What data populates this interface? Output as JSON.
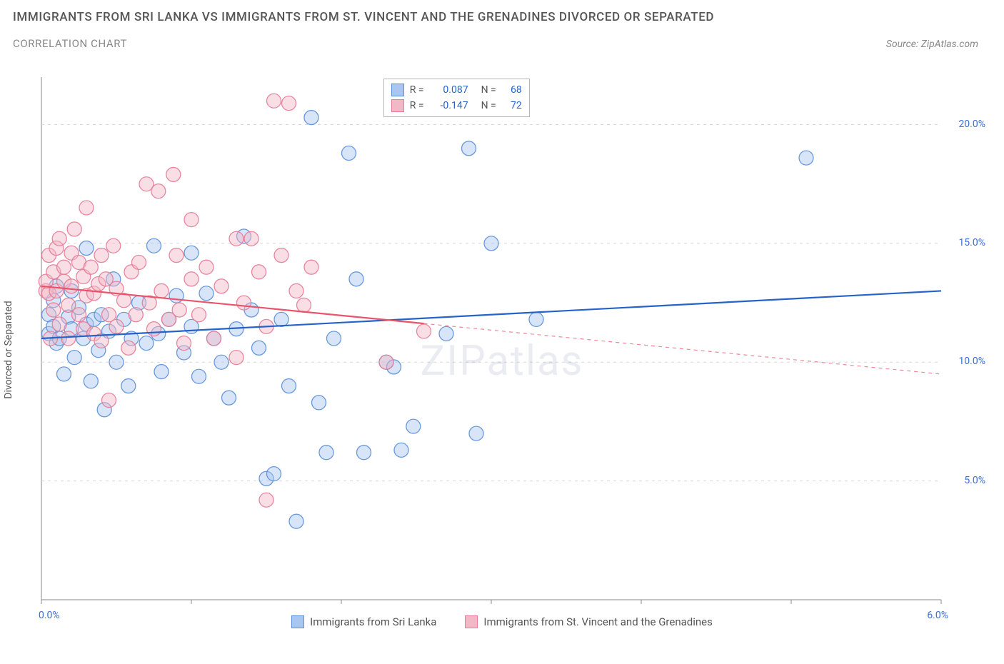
{
  "title": "IMMIGRANTS FROM SRI LANKA VS IMMIGRANTS FROM ST. VINCENT AND THE GRENADINES DIVORCED OR SEPARATED",
  "subtitle": "CORRELATION CHART",
  "source_prefix": "Source: ",
  "source_name": "ZipAtlas.com",
  "y_axis_label": "Divorced or Separated",
  "watermark": "ZIPatlas",
  "chart": {
    "type": "scatter",
    "background_color": "#ffffff",
    "grid_color": "#d8d8d8",
    "axis_color": "#888888",
    "tick_label_color": "#3b6fd6",
    "xlim": [
      0.0,
      6.0
    ],
    "ylim": [
      0.0,
      22.0
    ],
    "x_ticks": [
      0.0,
      1.0,
      2.0,
      3.0,
      4.0,
      5.0,
      6.0
    ],
    "x_tick_labels": {
      "0": "0.0%",
      "6": "6.0%"
    },
    "y_ticks": [
      5.0,
      10.0,
      15.0,
      20.0
    ],
    "y_tick_labels": {
      "5": "5.0%",
      "10": "10.0%",
      "15": "15.0%",
      "20": "20.0%"
    },
    "marker_radius": 10,
    "marker_opacity": 0.45,
    "marker_stroke_opacity": 0.9,
    "line_width": 2.2
  },
  "series": [
    {
      "key": "sri_lanka",
      "label": "Immigrants from Sri Lanka",
      "color_fill": "#a8c6f0",
      "color_stroke": "#5a8fd8",
      "line_color": "#2563c9",
      "R": "0.087",
      "N": "68",
      "trend": {
        "x1": 0.0,
        "y1": 11.0,
        "x2": 6.0,
        "y2": 13.0,
        "solid_until_x": 6.0
      },
      "points": [
        [
          0.05,
          12.0
        ],
        [
          0.05,
          11.2
        ],
        [
          0.08,
          12.6
        ],
        [
          0.08,
          11.5
        ],
        [
          0.1,
          13.2
        ],
        [
          0.1,
          10.8
        ],
        [
          0.12,
          11.0
        ],
        [
          0.15,
          9.5
        ],
        [
          0.18,
          11.9
        ],
        [
          0.2,
          13.0
        ],
        [
          0.2,
          11.4
        ],
        [
          0.22,
          10.2
        ],
        [
          0.25,
          12.3
        ],
        [
          0.28,
          11.0
        ],
        [
          0.3,
          14.8
        ],
        [
          0.3,
          11.6
        ],
        [
          0.33,
          9.2
        ],
        [
          0.35,
          11.8
        ],
        [
          0.38,
          10.5
        ],
        [
          0.4,
          12.0
        ],
        [
          0.42,
          8.0
        ],
        [
          0.45,
          11.3
        ],
        [
          0.48,
          13.5
        ],
        [
          0.5,
          10.0
        ],
        [
          0.55,
          11.8
        ],
        [
          0.58,
          9.0
        ],
        [
          0.6,
          11.0
        ],
        [
          0.65,
          12.5
        ],
        [
          0.7,
          10.8
        ],
        [
          0.75,
          14.9
        ],
        [
          0.78,
          11.2
        ],
        [
          0.8,
          9.6
        ],
        [
          0.85,
          11.8
        ],
        [
          0.9,
          12.8
        ],
        [
          0.95,
          10.4
        ],
        [
          1.0,
          14.6
        ],
        [
          1.0,
          11.5
        ],
        [
          1.05,
          9.4
        ],
        [
          1.1,
          12.9
        ],
        [
          1.15,
          11.0
        ],
        [
          1.2,
          10.0
        ],
        [
          1.25,
          8.5
        ],
        [
          1.3,
          11.4
        ],
        [
          1.35,
          15.3
        ],
        [
          1.4,
          12.2
        ],
        [
          1.45,
          10.6
        ],
        [
          1.5,
          5.1
        ],
        [
          1.55,
          5.3
        ],
        [
          1.6,
          11.8
        ],
        [
          1.65,
          9.0
        ],
        [
          1.7,
          3.3
        ],
        [
          1.8,
          20.3
        ],
        [
          1.85,
          8.3
        ],
        [
          1.9,
          6.2
        ],
        [
          1.95,
          11.0
        ],
        [
          2.05,
          18.8
        ],
        [
          2.1,
          13.5
        ],
        [
          2.15,
          6.2
        ],
        [
          2.3,
          10.0
        ],
        [
          2.35,
          9.8
        ],
        [
          2.4,
          6.3
        ],
        [
          2.48,
          7.3
        ],
        [
          2.7,
          11.2
        ],
        [
          2.85,
          19.0
        ],
        [
          2.9,
          7.0
        ],
        [
          3.0,
          15.0
        ],
        [
          3.3,
          11.8
        ],
        [
          5.1,
          18.6
        ]
      ]
    },
    {
      "key": "st_vincent",
      "label": "Immigrants from St. Vincent and the Grenadines",
      "color_fill": "#f2b8c6",
      "color_stroke": "#e77a95",
      "line_color": "#e9546b",
      "R": "-0.147",
      "N": "72",
      "trend": {
        "x1": 0.0,
        "y1": 13.2,
        "x2": 6.0,
        "y2": 9.5,
        "solid_until_x": 2.55
      },
      "points": [
        [
          0.03,
          13.0
        ],
        [
          0.03,
          13.4
        ],
        [
          0.05,
          14.5
        ],
        [
          0.05,
          12.9
        ],
        [
          0.06,
          11.0
        ],
        [
          0.08,
          13.8
        ],
        [
          0.08,
          12.2
        ],
        [
          0.1,
          14.8
        ],
        [
          0.1,
          13.0
        ],
        [
          0.12,
          11.6
        ],
        [
          0.12,
          15.2
        ],
        [
          0.15,
          13.4
        ],
        [
          0.15,
          14.0
        ],
        [
          0.18,
          12.4
        ],
        [
          0.18,
          11.0
        ],
        [
          0.2,
          14.6
        ],
        [
          0.2,
          13.2
        ],
        [
          0.22,
          15.6
        ],
        [
          0.25,
          12.0
        ],
        [
          0.25,
          14.2
        ],
        [
          0.28,
          13.6
        ],
        [
          0.28,
          11.4
        ],
        [
          0.3,
          12.8
        ],
        [
          0.3,
          16.5
        ],
        [
          0.33,
          14.0
        ],
        [
          0.35,
          12.9
        ],
        [
          0.35,
          11.2
        ],
        [
          0.38,
          13.3
        ],
        [
          0.4,
          10.9
        ],
        [
          0.4,
          14.5
        ],
        [
          0.43,
          13.5
        ],
        [
          0.45,
          12.0
        ],
        [
          0.45,
          8.4
        ],
        [
          0.48,
          14.9
        ],
        [
          0.5,
          13.1
        ],
        [
          0.5,
          11.5
        ],
        [
          0.55,
          12.6
        ],
        [
          0.58,
          10.6
        ],
        [
          0.6,
          13.8
        ],
        [
          0.63,
          12.0
        ],
        [
          0.65,
          14.2
        ],
        [
          0.7,
          17.5
        ],
        [
          0.72,
          12.5
        ],
        [
          0.75,
          11.4
        ],
        [
          0.78,
          17.2
        ],
        [
          0.8,
          13.0
        ],
        [
          0.85,
          11.8
        ],
        [
          0.88,
          17.9
        ],
        [
          0.9,
          14.5
        ],
        [
          0.92,
          12.2
        ],
        [
          0.95,
          10.8
        ],
        [
          1.0,
          13.5
        ],
        [
          1.0,
          16.0
        ],
        [
          1.05,
          12.0
        ],
        [
          1.1,
          14.0
        ],
        [
          1.15,
          11.0
        ],
        [
          1.2,
          13.2
        ],
        [
          1.3,
          15.2
        ],
        [
          1.3,
          10.2
        ],
        [
          1.35,
          12.5
        ],
        [
          1.4,
          15.2
        ],
        [
          1.45,
          13.8
        ],
        [
          1.5,
          11.5
        ],
        [
          1.55,
          21.0
        ],
        [
          1.6,
          14.5
        ],
        [
          1.65,
          20.9
        ],
        [
          1.7,
          13.0
        ],
        [
          1.75,
          12.4
        ],
        [
          1.8,
          14.0
        ],
        [
          1.5,
          4.2
        ],
        [
          2.3,
          10.0
        ],
        [
          2.55,
          11.3
        ]
      ]
    }
  ],
  "legend_box": {
    "r_label": "R =",
    "n_label": "N ="
  },
  "bottom_legend": {}
}
